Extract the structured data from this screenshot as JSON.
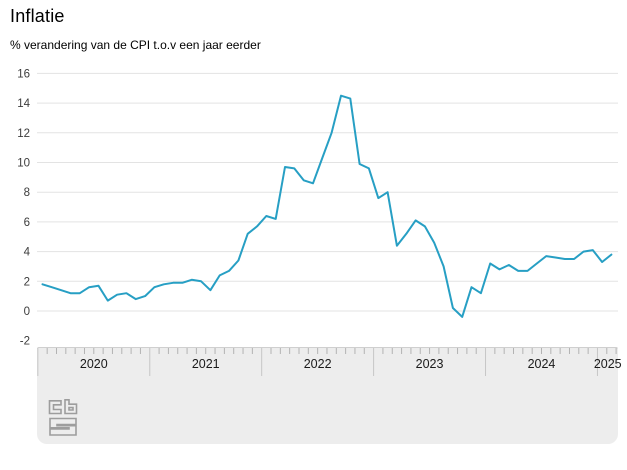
{
  "chart_data": {
    "type": "line",
    "title": "Inflatie",
    "subtitle": "% verandering van de CPI t.o.v een jaar eerder",
    "unit": "%",
    "frequency": "monthly",
    "x_start": "2020-01",
    "x_end": "2025-02",
    "x_year_labels": [
      "2020",
      "2021",
      "2022",
      "2023",
      "2024",
      "2025"
    ],
    "y_ticks": [
      16,
      14,
      12,
      10,
      8,
      6,
      4,
      2,
      0,
      -2
    ],
    "ylim": [
      -2,
      16
    ],
    "grid": true,
    "legend": false,
    "series": [
      {
        "name": "Inflatie (CPI, % verandering t.o.v. een jaar eerder)",
        "color": "#279fc4",
        "values": [
          1.8,
          1.6,
          1.4,
          1.2,
          1.2,
          1.6,
          1.7,
          0.7,
          1.1,
          1.2,
          0.8,
          1.0,
          1.6,
          1.8,
          1.9,
          1.9,
          2.1,
          2.0,
          1.4,
          2.4,
          2.7,
          3.4,
          5.2,
          5.7,
          6.4,
          6.2,
          9.7,
          9.6,
          8.8,
          8.6,
          10.3,
          12.0,
          14.5,
          14.3,
          9.9,
          9.6,
          7.6,
          8.0,
          4.4,
          5.2,
          6.1,
          5.7,
          4.6,
          3.0,
          0.2,
          -0.4,
          1.6,
          1.2,
          3.2,
          2.8,
          3.1,
          2.7,
          2.7,
          3.2,
          3.7,
          3.6,
          3.5,
          3.5,
          4.0,
          4.1,
          3.3,
          3.8
        ]
      }
    ]
  },
  "colors": {
    "line": "#279fc4",
    "gridline": "#e3e3e3",
    "band_background": "#ededed",
    "month_tick": "#b3b3b3",
    "year_divider": "#c6c6c6",
    "axis_label": "#3c3c3c",
    "logo": "#9d9d9d"
  },
  "branding": {
    "logo_name": "cbs-logo"
  }
}
